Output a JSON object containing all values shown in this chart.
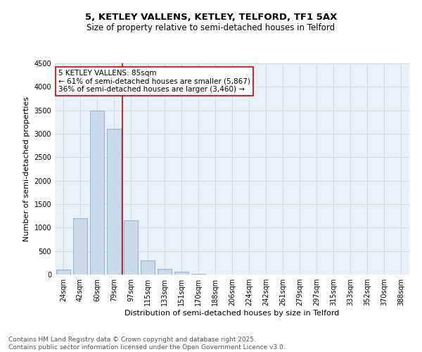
{
  "title_line1": "5, KETLEY VALLENS, KETLEY, TELFORD, TF1 5AX",
  "title_line2": "Size of property relative to semi-detached houses in Telford",
  "xlabel": "Distribution of semi-detached houses by size in Telford",
  "ylabel": "Number of semi-detached properties",
  "categories": [
    "24sqm",
    "42sqm",
    "60sqm",
    "79sqm",
    "97sqm",
    "115sqm",
    "133sqm",
    "151sqm",
    "170sqm",
    "188sqm",
    "206sqm",
    "224sqm",
    "242sqm",
    "261sqm",
    "279sqm",
    "297sqm",
    "315sqm",
    "333sqm",
    "352sqm",
    "370sqm",
    "388sqm"
  ],
  "values": [
    100,
    1200,
    3500,
    3100,
    1150,
    300,
    120,
    60,
    10,
    2,
    0,
    0,
    0,
    0,
    0,
    0,
    0,
    0,
    0,
    0,
    0
  ],
  "bar_color": "#c9d9e8",
  "bar_edge_color": "#7faecb",
  "highlight_bar_index": 3,
  "vline_color": "#cc0000",
  "vline_x": 3.5,
  "ylim": [
    0,
    4500
  ],
  "yticks": [
    0,
    500,
    1000,
    1500,
    2000,
    2500,
    3000,
    3500,
    4000,
    4500
  ],
  "annotation_title": "5 KETLEY VALLENS: 85sqm",
  "annotation_line1": "← 61% of semi-detached houses are smaller (5,867)",
  "annotation_line2": "36% of semi-detached houses are larger (3,460) →",
  "annotation_box_color": "#ffffff",
  "annotation_box_edge_color": "#cc0000",
  "grid_color": "#c8d8e8",
  "background_color": "#e8f0fa",
  "footer_line1": "Contains HM Land Registry data © Crown copyright and database right 2025.",
  "footer_line2": "Contains public sector information licensed under the Open Government Licence v3.0.",
  "title_fontsize": 9.5,
  "subtitle_fontsize": 8.5,
  "axis_label_fontsize": 8,
  "tick_fontsize": 7,
  "annotation_fontsize": 7.5,
  "footer_fontsize": 6.5
}
